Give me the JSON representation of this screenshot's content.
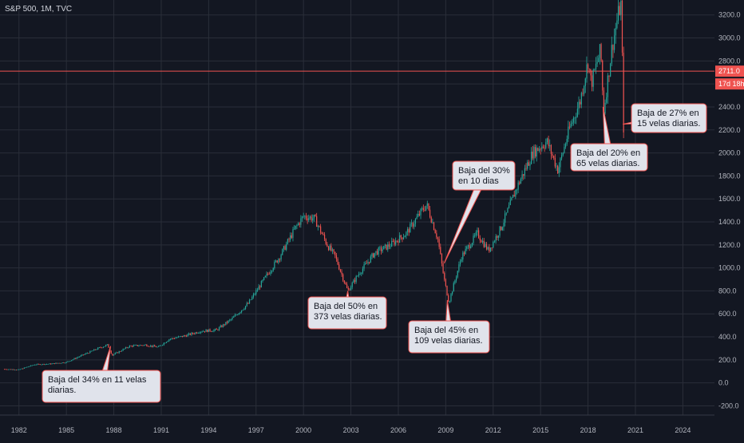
{
  "header": {
    "symbol": "S&P 500, 1M, TVC"
  },
  "colors": {
    "background": "#131722",
    "grid": "#2a2e39",
    "up": "#26a69a",
    "down": "#ef5350",
    "price_line": "#ef5350",
    "callout_bg": "#e0e3eb",
    "callout_border": "#ef5350",
    "tick_text": "#b2b5be"
  },
  "price_badge": {
    "value": "2711.0",
    "countdown": "17d 18h"
  },
  "chart_data": {
    "type": "candlestick",
    "title": "S&P 500, 1M, TVC",
    "xlabel": "",
    "ylabel": "",
    "xlim": [
      1980.8,
      2026.0
    ],
    "ylim": [
      -280,
      3330
    ],
    "x_ticks": [
      "1982",
      "1985",
      "1988",
      "1991",
      "1994",
      "1997",
      "2000",
      "2003",
      "2006",
      "2009",
      "2012",
      "2015",
      "2018",
      "2021",
      "2024"
    ],
    "y_ticks": [
      "-200.0",
      "0.0",
      "200.0",
      "400.0",
      "600.0",
      "800.0",
      "1000.0",
      "1200.0",
      "1400.0",
      "1600.0",
      "1800.0",
      "2000.0",
      "2200.0",
      "2400.0",
      "2600.0",
      "2800.0",
      "3000.0",
      "3200.0"
    ],
    "y_tick_values": [
      -200,
      0,
      200,
      400,
      600,
      800,
      1000,
      1200,
      1400,
      1600,
      1800,
      2000,
      2200,
      2400,
      2600,
      2800,
      3000,
      3200
    ],
    "current_price": 2711.0,
    "grid": true,
    "series": [
      {
        "x": [
          1981.0,
          1982.0,
          1983.0,
          1984.0,
          1985.0,
          1986.0,
          1987.0,
          1987.6,
          1987.9,
          1989.0,
          1990.0,
          1990.8,
          1991.5,
          1992.5,
          1993.5,
          1994.5,
          1995.5,
          1996.5,
          1997.5,
          1998.5,
          1999.5,
          2000.0,
          2000.7,
          2001.5,
          2002.0,
          2002.8,
          2003.5,
          2004.5,
          2005.5,
          2006.5,
          2007.5,
          2007.8,
          2008.5,
          2008.9,
          2009.2,
          2010.0,
          2011.0,
          2011.7,
          2012.5,
          2013.5,
          2014.5,
          2015.4,
          2016.1,
          2016.8,
          2017.5,
          2018.0,
          2018.2,
          2018.8,
          2018.98,
          2019.5,
          2019.9,
          2020.1,
          2020.25
        ],
        "y": [
          120,
          115,
          160,
          165,
          180,
          240,
          300,
          330,
          240,
          320,
          330,
          310,
          380,
          410,
          450,
          460,
          560,
          690,
          900,
          1100,
          1350,
          1450,
          1430,
          1200,
          1100,
          800,
          950,
          1130,
          1200,
          1300,
          1500,
          1550,
          1250,
          900,
          700,
          1100,
          1300,
          1150,
          1350,
          1700,
          2000,
          2100,
          1850,
          2200,
          2450,
          2800,
          2600,
          2900,
          2350,
          2900,
          3200,
          3300,
          2220
        ]
      }
    ],
    "annotations": [
      "Baja del 34% en 11 velas diarias.",
      "Baja del 50% en 373 velas diarias.",
      "Baja del 30% en 10 dias",
      "Baja del 45% en 109 velas diarias.",
      "Baja del 20% en 65 velas diarias.",
      "Baja de 27% en 15 velas diarias."
    ]
  },
  "callouts": [
    {
      "lines": [
        "Baja del 34% en 11 velas",
        "diarias."
      ],
      "at": [
        1987.8,
        320
      ]
    },
    {
      "lines": [
        "Baja del 50% en",
        "373 velas diarias."
      ],
      "at": [
        2002.8,
        800
      ]
    },
    {
      "lines": [
        "Baja del 30%",
        "en 10 dias"
      ],
      "at": [
        2008.9,
        1040
      ]
    },
    {
      "lines": [
        "Baja del 45% en",
        "109 velas diarias."
      ],
      "at": [
        2009.1,
        720
      ]
    },
    {
      "lines": [
        "Baja del 20% en",
        "65 velas diarias."
      ],
      "at": [
        2018.95,
        2400
      ]
    },
    {
      "lines": [
        "Baja de 27% en",
        "15 velas diarias."
      ],
      "at": [
        2020.2,
        2250
      ]
    }
  ]
}
